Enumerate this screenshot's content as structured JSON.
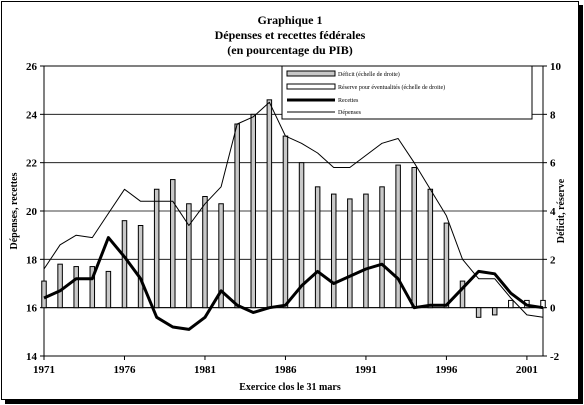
{
  "chart_data": {
    "type": "bar",
    "title": "Graphique 1",
    "subtitle": "Dépenses et recettes fédérales",
    "subtitle2": "(en pourcentage du PIB)",
    "xlabel": "Exercice clos le 31 mars",
    "ylabel_left": "Dépenses, recettes",
    "ylabel_right": "Déficit, réserve",
    "ylim_left": [
      14,
      26
    ],
    "ylim_right": [
      -2,
      10
    ],
    "xlim": [
      1971,
      2002
    ],
    "left_ticks": [
      "14",
      "16",
      "18",
      "20",
      "22",
      "24",
      "26"
    ],
    "right_ticks": [
      "-2",
      "0",
      "2",
      "4",
      "6",
      "8",
      "10"
    ],
    "x_ticks": [
      "1971",
      "1976",
      "1981",
      "1986",
      "1991",
      "1996",
      "2001"
    ],
    "grid": true,
    "legend_position": "top-right",
    "x": [
      1971,
      1972,
      1973,
      1974,
      1975,
      1976,
      1977,
      1978,
      1979,
      1980,
      1981,
      1982,
      1983,
      1984,
      1985,
      1986,
      1987,
      1988,
      1989,
      1990,
      1991,
      1992,
      1993,
      1994,
      1995,
      1996,
      1997,
      1998,
      1999,
      2000,
      2001,
      2002
    ],
    "series": [
      {
        "name": "Déficit (échelle de droite)",
        "kind": "bar",
        "axis": "right",
        "color": "#c8c8c8",
        "values": [
          1.1,
          1.8,
          1.7,
          1.7,
          1.5,
          3.6,
          3.4,
          4.9,
          5.3,
          4.3,
          4.6,
          4.3,
          7.6,
          8.0,
          8.6,
          7.1,
          6.0,
          5.0,
          4.7,
          4.5,
          4.7,
          5.0,
          5.9,
          5.8,
          4.9,
          3.5,
          1.1,
          -0.4,
          -0.3,
          null,
          null,
          null
        ]
      },
      {
        "name": "Réserve pour éventualités (échelle de droite)",
        "kind": "bar",
        "axis": "right",
        "color": "#ffffff",
        "values": [
          null,
          null,
          null,
          null,
          null,
          null,
          null,
          null,
          null,
          null,
          null,
          null,
          null,
          null,
          null,
          null,
          null,
          null,
          null,
          null,
          null,
          null,
          null,
          null,
          null,
          null,
          null,
          null,
          null,
          0.3,
          0.3,
          0.3
        ]
      },
      {
        "name": "Recettes",
        "kind": "line",
        "axis": "left",
        "color": "#000000",
        "values": [
          16.4,
          16.7,
          17.2,
          17.2,
          18.9,
          18.1,
          17.2,
          15.6,
          15.2,
          15.1,
          15.6,
          16.7,
          16.1,
          15.8,
          16.0,
          16.1,
          16.9,
          17.5,
          17.0,
          17.3,
          17.6,
          17.8,
          17.2,
          16.0,
          16.1,
          16.1,
          16.8,
          17.5,
          17.4,
          16.6,
          16.1,
          16.0
        ]
      },
      {
        "name": "Dépenses",
        "kind": "line",
        "axis": "left",
        "color": "#000000",
        "values": [
          17.6,
          18.6,
          19.0,
          18.9,
          19.9,
          20.9,
          20.4,
          20.4,
          20.4,
          19.4,
          20.3,
          21.0,
          23.6,
          23.9,
          24.5,
          23.1,
          22.8,
          22.4,
          21.8,
          21.8,
          22.3,
          22.8,
          23.0,
          22.0,
          20.9,
          19.8,
          18.0,
          17.2,
          17.2,
          16.4,
          15.7,
          15.6
        ]
      }
    ]
  }
}
